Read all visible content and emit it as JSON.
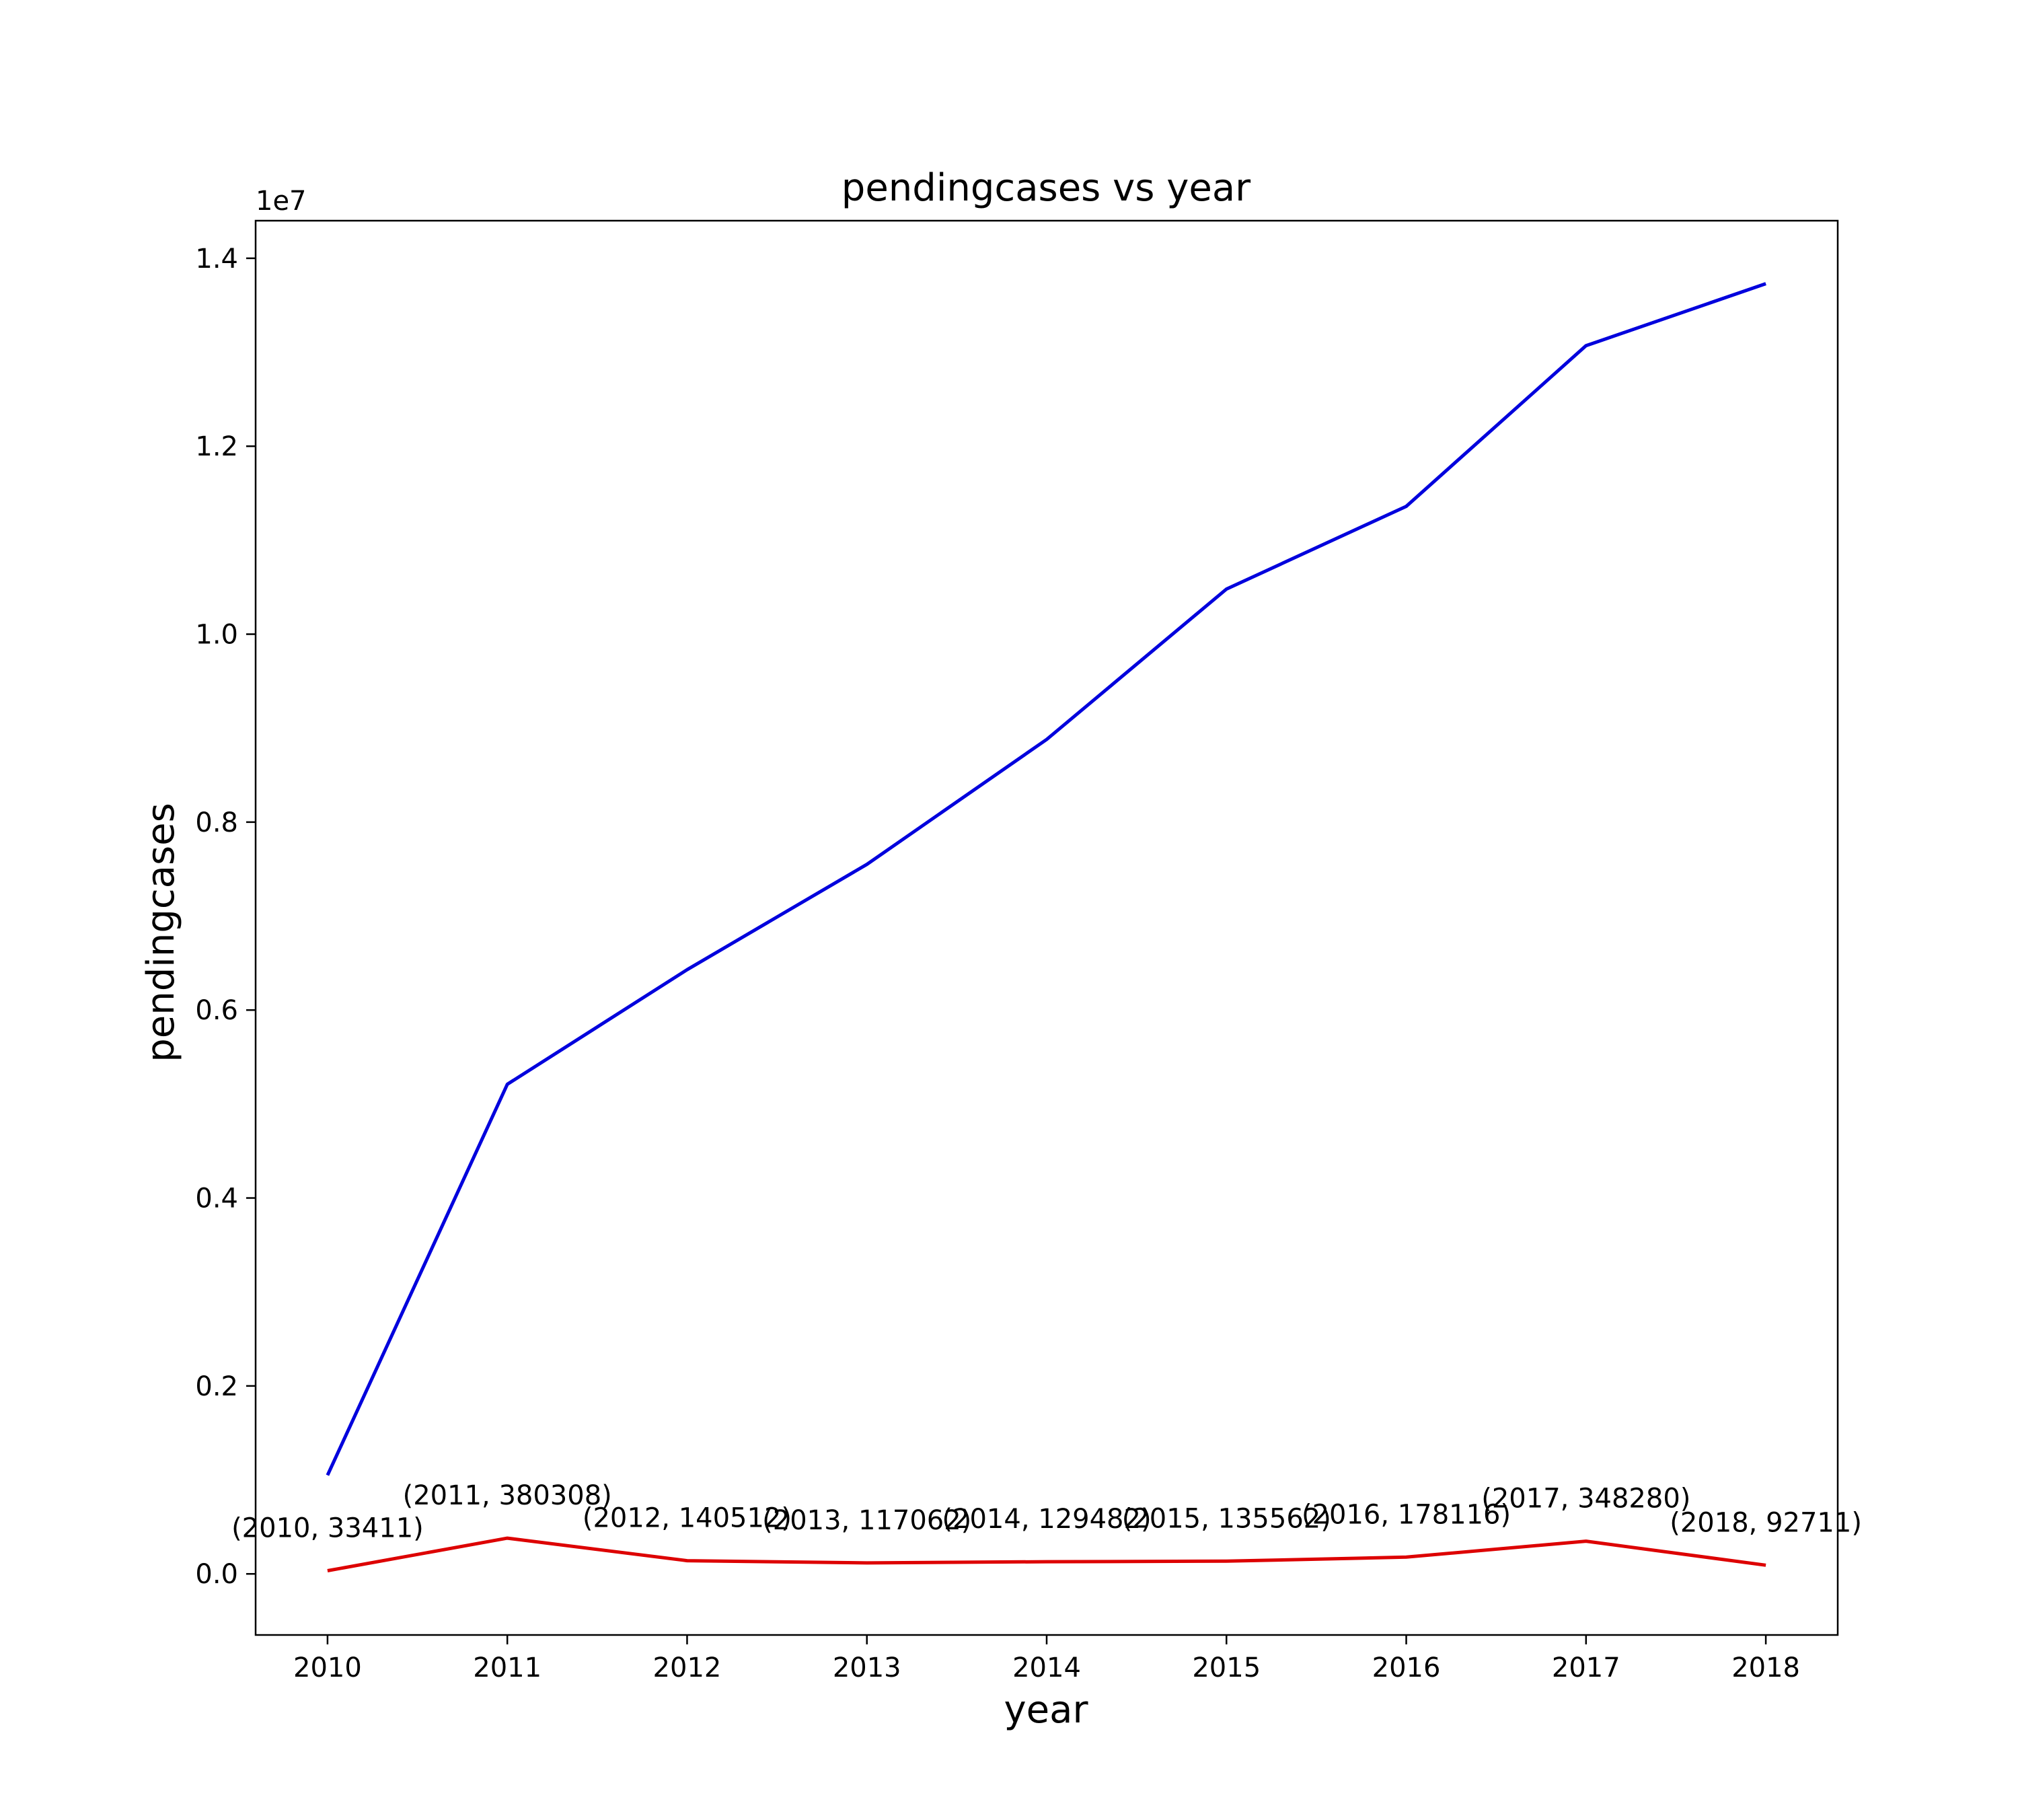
{
  "chart_data": {
    "type": "line",
    "title": "pendingcases vs year",
    "xlabel": "year",
    "ylabel": "pendingcases",
    "y_offset_label": "1e7",
    "xlim": [
      2009.6,
      2018.4
    ],
    "ylim": [
      -0.065,
      1.44
    ],
    "y_scale_factor": 10000000,
    "x_ticks": [
      2010,
      2011,
      2012,
      2013,
      2014,
      2015,
      2016,
      2017,
      2018
    ],
    "y_ticks": [
      0.0,
      0.2,
      0.4,
      0.6,
      0.8,
      1.0,
      1.2,
      1.4
    ],
    "y_tick_labels": [
      "0.0",
      "0.2",
      "0.4",
      "0.6",
      "0.8",
      "1.0",
      "1.2",
      "1.4"
    ],
    "grid": false,
    "series": [
      {
        "color": "#0000dd",
        "x": [
          2010,
          2011,
          2012,
          2013,
          2014,
          2015,
          2016,
          2017,
          2018
        ],
        "y": [
          1050000,
          5210000,
          6430000,
          7550000,
          8880000,
          10480000,
          11360000,
          13070000,
          13730000
        ]
      },
      {
        "color": "#dd0000",
        "x": [
          2010,
          2011,
          2012,
          2013,
          2014,
          2015,
          2016,
          2017,
          2018
        ],
        "y": [
          33411,
          380308,
          140512,
          117062,
          129482,
          135562,
          178116,
          348280,
          92711
        ]
      }
    ],
    "annotations": [
      "(2010, 33411)",
      "(2011, 380308)",
      "(2012, 140512)",
      "(2013, 117062)",
      "(2014, 129482)",
      "(2015, 135562)",
      "(2016, 178116)",
      "(2017, 348280)",
      "(2018, 92711)"
    ]
  }
}
